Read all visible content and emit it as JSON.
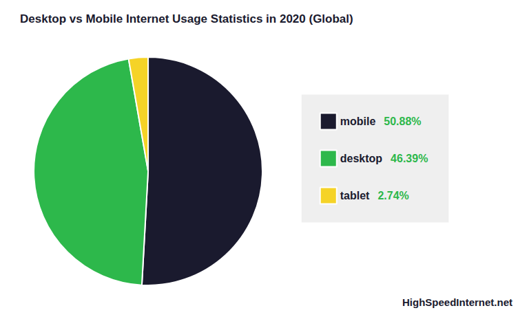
{
  "chart_data": {
    "type": "pie",
    "title": "Desktop vs Mobile Internet Usage Statistics in 2020 (Global)",
    "categories": [
      "mobile",
      "desktop",
      "tablet"
    ],
    "values": [
      50.88,
      46.39,
      2.74
    ],
    "value_labels": [
      "50.88%",
      "46.39%",
      "2.74%"
    ],
    "colors": [
      "#1a1a2e",
      "#2db84b",
      "#f5d327"
    ],
    "legend": "right",
    "annotations": [
      "HighSpeedInternet.net"
    ]
  }
}
